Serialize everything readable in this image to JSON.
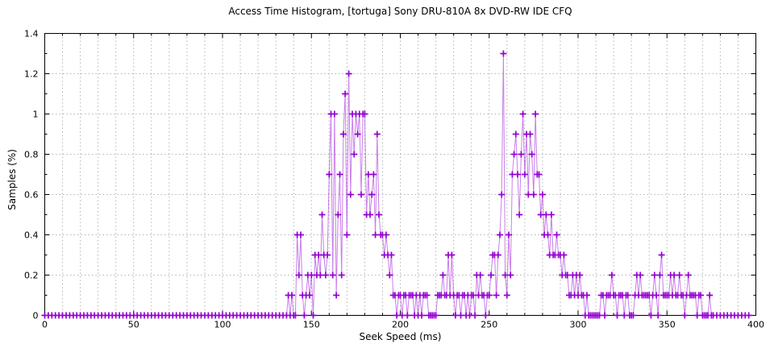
{
  "chart_data": {
    "type": "line",
    "style": "linespoints-plus",
    "title": "Access Time Histogram, [tortuga] Sony DRU-810A 8x DVD-RW IDE CFQ",
    "xlabel": "Seek Speed (ms)",
    "ylabel": "Samples (%)",
    "xlim": [
      0,
      400
    ],
    "ylim": [
      0,
      1.4
    ],
    "xticks": {
      "major": [
        0,
        50,
        100,
        150,
        200,
        250,
        300,
        350,
        400
      ],
      "labels": [
        "0",
        "50",
        "100",
        "150",
        "200",
        "250",
        "300",
        "350",
        "400"
      ],
      "minor_step": 10
    },
    "yticks": {
      "major": [
        0,
        0.2,
        0.4,
        0.6,
        0.8,
        1.0,
        1.2,
        1.4
      ],
      "labels": [
        "0",
        "0.2",
        "0.4",
        "0.6",
        "0.8",
        "1",
        "1.2",
        "1.4"
      ],
      "minor_step": 0.1
    },
    "grid": {
      "vertical_every_ms": 10,
      "horizontal_every": 0.2,
      "style": "dotted",
      "color": "#b3b3b3"
    },
    "series_color": "#9400d3",
    "legend": "none",
    "points": [
      [
        0,
        0
      ],
      [
        2,
        0
      ],
      [
        4,
        0
      ],
      [
        6,
        0
      ],
      [
        8,
        0
      ],
      [
        10,
        0
      ],
      [
        12,
        0
      ],
      [
        14,
        0
      ],
      [
        16,
        0
      ],
      [
        18,
        0
      ],
      [
        20,
        0
      ],
      [
        22,
        0
      ],
      [
        24,
        0
      ],
      [
        26,
        0
      ],
      [
        28,
        0
      ],
      [
        30,
        0
      ],
      [
        32,
        0
      ],
      [
        34,
        0
      ],
      [
        36,
        0
      ],
      [
        38,
        0
      ],
      [
        40,
        0
      ],
      [
        42,
        0
      ],
      [
        44,
        0
      ],
      [
        46,
        0
      ],
      [
        48,
        0
      ],
      [
        50,
        0
      ],
      [
        52,
        0
      ],
      [
        54,
        0
      ],
      [
        56,
        0
      ],
      [
        58,
        0
      ],
      [
        60,
        0
      ],
      [
        62,
        0
      ],
      [
        64,
        0
      ],
      [
        66,
        0
      ],
      [
        68,
        0
      ],
      [
        70,
        0
      ],
      [
        72,
        0
      ],
      [
        74,
        0
      ],
      [
        76,
        0
      ],
      [
        78,
        0
      ],
      [
        80,
        0
      ],
      [
        82,
        0
      ],
      [
        84,
        0
      ],
      [
        86,
        0
      ],
      [
        88,
        0
      ],
      [
        90,
        0
      ],
      [
        92,
        0
      ],
      [
        94,
        0
      ],
      [
        96,
        0
      ],
      [
        98,
        0
      ],
      [
        100,
        0
      ],
      [
        102,
        0
      ],
      [
        104,
        0
      ],
      [
        106,
        0
      ],
      [
        108,
        0
      ],
      [
        110,
        0
      ],
      [
        112,
        0
      ],
      [
        114,
        0
      ],
      [
        116,
        0
      ],
      [
        118,
        0
      ],
      [
        120,
        0
      ],
      [
        122,
        0
      ],
      [
        124,
        0
      ],
      [
        126,
        0
      ],
      [
        128,
        0
      ],
      [
        130,
        0
      ],
      [
        132,
        0
      ],
      [
        134,
        0
      ],
      [
        136,
        0
      ],
      [
        137,
        0.1
      ],
      [
        138,
        0
      ],
      [
        139,
        0.1
      ],
      [
        140,
        0
      ],
      [
        141,
        0
      ],
      [
        142,
        0.4
      ],
      [
        143,
        0.2
      ],
      [
        144,
        0.4
      ],
      [
        145,
        0.1
      ],
      [
        146,
        0
      ],
      [
        147,
        0.1
      ],
      [
        148,
        0.2
      ],
      [
        149,
        0.1
      ],
      [
        150,
        0.2
      ],
      [
        151,
        0
      ],
      [
        152,
        0.3
      ],
      [
        153,
        0.2
      ],
      [
        154,
        0.3
      ],
      [
        155,
        0.2
      ],
      [
        156,
        0.5
      ],
      [
        157,
        0.3
      ],
      [
        158,
        0.2
      ],
      [
        159,
        0.3
      ],
      [
        160,
        0.7
      ],
      [
        161,
        1.0
      ],
      [
        162,
        0.2
      ],
      [
        163,
        1.0
      ],
      [
        164,
        0.1
      ],
      [
        165,
        0.5
      ],
      [
        166,
        0.7
      ],
      [
        167,
        0.2
      ],
      [
        168,
        0.9
      ],
      [
        169,
        1.1
      ],
      [
        170,
        0.4
      ],
      [
        171,
        1.2
      ],
      [
        172,
        0.6
      ],
      [
        173,
        1.0
      ],
      [
        174,
        0.8
      ],
      [
        175,
        1.0
      ],
      [
        176,
        0.9
      ],
      [
        177,
        1.0
      ],
      [
        178,
        0.6
      ],
      [
        179,
        1.0
      ],
      [
        180,
        1.0
      ],
      [
        181,
        0.5
      ],
      [
        182,
        0.7
      ],
      [
        183,
        0.5
      ],
      [
        184,
        0.6
      ],
      [
        185,
        0.7
      ],
      [
        186,
        0.4
      ],
      [
        187,
        0.9
      ],
      [
        188,
        0.5
      ],
      [
        189,
        0.4
      ],
      [
        190,
        0.4
      ],
      [
        191,
        0.3
      ],
      [
        192,
        0.4
      ],
      [
        193,
        0.3
      ],
      [
        194,
        0.2
      ],
      [
        195,
        0.3
      ],
      [
        196,
        0.1
      ],
      [
        197,
        0.1
      ],
      [
        198,
        0
      ],
      [
        199,
        0.1
      ],
      [
        200,
        0.1
      ],
      [
        201,
        0
      ],
      [
        202,
        0.1
      ],
      [
        203,
        0.1
      ],
      [
        204,
        0
      ],
      [
        205,
        0.1
      ],
      [
        206,
        0.1
      ],
      [
        207,
        0.1
      ],
      [
        208,
        0
      ],
      [
        209,
        0.1
      ],
      [
        210,
        0
      ],
      [
        211,
        0.1
      ],
      [
        212,
        0
      ],
      [
        213,
        0.1
      ],
      [
        214,
        0.1
      ],
      [
        215,
        0.1
      ],
      [
        216,
        0
      ],
      [
        217,
        0
      ],
      [
        218,
        0
      ],
      [
        219,
        0
      ],
      [
        220,
        0
      ],
      [
        221,
        0.1
      ],
      [
        222,
        0.1
      ],
      [
        223,
        0.1
      ],
      [
        224,
        0.2
      ],
      [
        225,
        0.1
      ],
      [
        226,
        0.1
      ],
      [
        227,
        0.3
      ],
      [
        228,
        0.1
      ],
      [
        229,
        0.3
      ],
      [
        230,
        0.1
      ],
      [
        231,
        0
      ],
      [
        232,
        0.1
      ],
      [
        233,
        0.1
      ],
      [
        234,
        0
      ],
      [
        235,
        0.1
      ],
      [
        236,
        0.1
      ],
      [
        237,
        0
      ],
      [
        238,
        0.1
      ],
      [
        239,
        0
      ],
      [
        240,
        0.1
      ],
      [
        241,
        0.1
      ],
      [
        242,
        0
      ],
      [
        243,
        0.2
      ],
      [
        244,
        0.1
      ],
      [
        245,
        0.2
      ],
      [
        246,
        0.1
      ],
      [
        247,
        0.1
      ],
      [
        248,
        0
      ],
      [
        249,
        0.1
      ],
      [
        250,
        0.1
      ],
      [
        251,
        0.2
      ],
      [
        252,
        0.3
      ],
      [
        253,
        0.3
      ],
      [
        254,
        0.1
      ],
      [
        255,
        0.3
      ],
      [
        256,
        0.4
      ],
      [
        257,
        0.6
      ],
      [
        258,
        1.3
      ],
      [
        259,
        0.2
      ],
      [
        260,
        0.1
      ],
      [
        261,
        0.4
      ],
      [
        262,
        0.2
      ],
      [
        263,
        0.7
      ],
      [
        264,
        0.8
      ],
      [
        265,
        0.9
      ],
      [
        266,
        0.7
      ],
      [
        267,
        0.5
      ],
      [
        268,
        0.8
      ],
      [
        269,
        1.0
      ],
      [
        270,
        0.7
      ],
      [
        271,
        0.9
      ],
      [
        272,
        0.6
      ],
      [
        273,
        0.9
      ],
      [
        274,
        0.8
      ],
      [
        275,
        0.6
      ],
      [
        276,
        1.0
      ],
      [
        277,
        0.7
      ],
      [
        278,
        0.7
      ],
      [
        279,
        0.5
      ],
      [
        280,
        0.6
      ],
      [
        281,
        0.4
      ],
      [
        282,
        0.5
      ],
      [
        283,
        0.4
      ],
      [
        284,
        0.3
      ],
      [
        285,
        0.5
      ],
      [
        286,
        0.3
      ],
      [
        287,
        0.3
      ],
      [
        288,
        0.4
      ],
      [
        289,
        0.3
      ],
      [
        290,
        0.3
      ],
      [
        291,
        0.2
      ],
      [
        292,
        0.3
      ],
      [
        293,
        0.2
      ],
      [
        294,
        0.2
      ],
      [
        295,
        0.1
      ],
      [
        296,
        0.1
      ],
      [
        297,
        0.2
      ],
      [
        298,
        0.1
      ],
      [
        299,
        0.2
      ],
      [
        300,
        0.1
      ],
      [
        301,
        0.2
      ],
      [
        302,
        0.1
      ],
      [
        303,
        0.1
      ],
      [
        304,
        0
      ],
      [
        305,
        0.1
      ],
      [
        306,
        0
      ],
      [
        307,
        0
      ],
      [
        308,
        0
      ],
      [
        309,
        0
      ],
      [
        310,
        0
      ],
      [
        311,
        0
      ],
      [
        312,
        0
      ],
      [
        313,
        0.1
      ],
      [
        314,
        0.1
      ],
      [
        315,
        0
      ],
      [
        316,
        0.1
      ],
      [
        317,
        0.1
      ],
      [
        318,
        0.1
      ],
      [
        319,
        0.2
      ],
      [
        320,
        0.1
      ],
      [
        321,
        0.1
      ],
      [
        322,
        0
      ],
      [
        323,
        0.1
      ],
      [
        324,
        0.1
      ],
      [
        325,
        0.1
      ],
      [
        326,
        0
      ],
      [
        327,
        0.1
      ],
      [
        328,
        0.1
      ],
      [
        329,
        0
      ],
      [
        330,
        0
      ],
      [
        331,
        0
      ],
      [
        332,
        0.1
      ],
      [
        333,
        0.2
      ],
      [
        334,
        0.1
      ],
      [
        335,
        0.2
      ],
      [
        336,
        0.1
      ],
      [
        337,
        0.1
      ],
      [
        338,
        0.1
      ],
      [
        339,
        0.1
      ],
      [
        340,
        0.1
      ],
      [
        341,
        0
      ],
      [
        342,
        0.1
      ],
      [
        343,
        0.2
      ],
      [
        344,
        0.1
      ],
      [
        345,
        0
      ],
      [
        346,
        0.2
      ],
      [
        347,
        0.3
      ],
      [
        348,
        0.1
      ],
      [
        349,
        0.1
      ],
      [
        350,
        0.1
      ],
      [
        351,
        0.1
      ],
      [
        352,
        0.2
      ],
      [
        353,
        0.1
      ],
      [
        354,
        0.2
      ],
      [
        355,
        0.1
      ],
      [
        356,
        0.1
      ],
      [
        357,
        0.2
      ],
      [
        358,
        0.1
      ],
      [
        359,
        0.1
      ],
      [
        360,
        0
      ],
      [
        361,
        0.1
      ],
      [
        362,
        0.2
      ],
      [
        363,
        0.1
      ],
      [
        364,
        0.1
      ],
      [
        365,
        0.1
      ],
      [
        366,
        0.1
      ],
      [
        367,
        0
      ],
      [
        368,
        0.1
      ],
      [
        369,
        0.1
      ],
      [
        370,
        0
      ],
      [
        371,
        0
      ],
      [
        372,
        0
      ],
      [
        373,
        0
      ],
      [
        374,
        0.1
      ],
      [
        375,
        0
      ],
      [
        376,
        0
      ],
      [
        378,
        0
      ],
      [
        380,
        0
      ],
      [
        382,
        0
      ],
      [
        384,
        0
      ],
      [
        386,
        0
      ],
      [
        388,
        0
      ],
      [
        390,
        0
      ],
      [
        392,
        0
      ],
      [
        394,
        0
      ],
      [
        396,
        0
      ]
    ]
  }
}
